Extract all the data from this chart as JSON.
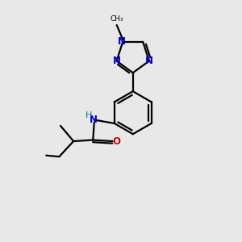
{
  "bg_color": "#e8e8e8",
  "bond_color": "#000000",
  "n_color": "#0000cc",
  "o_color": "#cc0000",
  "nh_color": "#008080",
  "line_width": 1.6,
  "font_size": 8.5,
  "fig_size": [
    3.0,
    3.0
  ],
  "dpi": 100,
  "xlim": [
    0,
    10
  ],
  "ylim": [
    0,
    10
  ]
}
